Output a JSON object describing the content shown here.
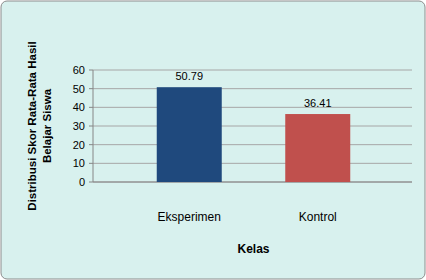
{
  "chart_data": {
    "type": "bar",
    "categories": [
      "Eksperimen",
      "Kontrol"
    ],
    "values": [
      50.79,
      36.41
    ],
    "colors": [
      "#1f497d",
      "#c0504d"
    ],
    "x_label": "Kelas",
    "y_label": "Distribusi Skor Rata-Rata Hasil Belajar Siswa",
    "ylim": [
      0,
      60
    ],
    "yticks": [
      0,
      10,
      20,
      30,
      40,
      50,
      60
    ],
    "grid": true,
    "data_labels": true
  }
}
